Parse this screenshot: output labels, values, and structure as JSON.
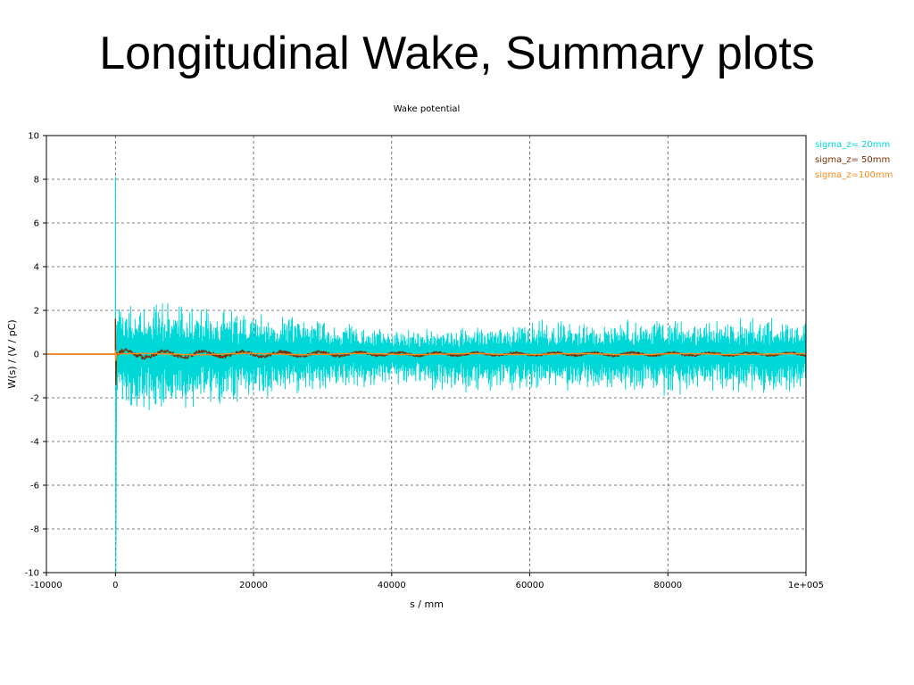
{
  "slide": {
    "title": "Longitudinal Wake, Summary plots"
  },
  "chart_data": {
    "type": "line",
    "title": "Wake potential",
    "xlabel": "s / mm",
    "ylabel": "W(s) / (V / pC)",
    "xlim": [
      -10000,
      100000
    ],
    "ylim": [
      -10,
      10
    ],
    "x_ticks": [
      -10000,
      0,
      20000,
      40000,
      60000,
      80000,
      100000
    ],
    "x_tick_labels": [
      "-10000",
      "0",
      "20000",
      "40000",
      "60000",
      "80000",
      "1e+005"
    ],
    "y_ticks": [
      -10,
      -8,
      -6,
      -4,
      -2,
      0,
      2,
      4,
      6,
      8,
      10
    ],
    "y_tick_labels": [
      "-10",
      "-8",
      "-6",
      "-4",
      "-2",
      "0",
      "2",
      "4",
      "6",
      "8",
      "10"
    ],
    "grid": true,
    "legend_position": "top-right",
    "series": [
      {
        "name": "sigma_z= 20mm",
        "color": "#00d8d8",
        "peak_max": 8.1,
        "peak_min": -10,
        "envelope_x": [
          0,
          2000,
          10000,
          20000,
          30000,
          40000,
          50000,
          60000,
          80000,
          100000
        ],
        "envelope_upper": [
          3.0,
          2.8,
          2.4,
          2.1,
          1.7,
          1.2,
          1.3,
          1.6,
          1.7,
          1.7
        ],
        "envelope_lower": [
          -2.9,
          -2.8,
          -2.6,
          -2.3,
          -1.8,
          -1.6,
          -1.8,
          -1.9,
          -1.9,
          -1.9
        ]
      },
      {
        "name": "sigma_z= 50mm",
        "color": "#7a3000",
        "peak_max": 1.6,
        "peak_min": -1.4,
        "envelope_x": [
          0,
          2000,
          15000,
          30000,
          50000,
          80000,
          100000
        ],
        "envelope_upper": [
          0.3,
          0.25,
          0.2,
          0.15,
          0.12,
          0.12,
          0.1
        ],
        "envelope_lower": [
          -0.3,
          -0.25,
          -0.2,
          -0.15,
          -0.12,
          -0.12,
          -0.1
        ]
      },
      {
        "name": "sigma_z=100mm",
        "color": "#ff8c1a",
        "peak_max": 0.15,
        "peak_min": -0.3,
        "envelope_x": [
          0,
          100000
        ],
        "envelope_upper": [
          0.05,
          0.03
        ],
        "envelope_lower": [
          -0.05,
          -0.03
        ]
      }
    ]
  }
}
